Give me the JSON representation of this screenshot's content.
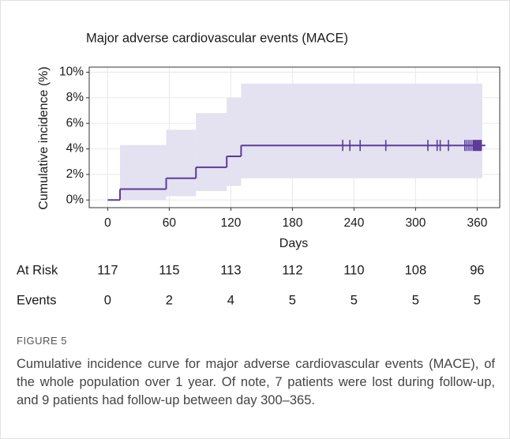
{
  "chart_data": {
    "type": "step",
    "title": "Major adverse cardiovascular events (MACE)",
    "x_label": "Days",
    "y_label": "Cumulative incidence (%)",
    "x": [
      0,
      12,
      57,
      86,
      116,
      130,
      368
    ],
    "values": [
      0,
      0.85,
      1.7,
      2.56,
      3.42,
      4.27,
      4.27
    ],
    "color": "#5b3c9a",
    "band": {
      "x": [
        12,
        57,
        86,
        116,
        130,
        365
      ],
      "lower": [
        0,
        0.3,
        0.7,
        1.1,
        1.7,
        1.7
      ],
      "upper": [
        4.3,
        5.5,
        6.8,
        8.0,
        9.1,
        9.1
      ],
      "color": "#e4e1f1"
    },
    "censored": {
      "x": [
        229,
        236,
        246,
        271,
        312,
        321,
        324,
        332,
        348,
        350,
        352,
        354,
        356,
        357,
        358,
        359,
        360,
        361,
        362,
        363,
        364
      ],
      "values": [
        4.27,
        4.27,
        4.27,
        4.27,
        4.27,
        4.27,
        4.27,
        4.27,
        4.27,
        4.27,
        4.27,
        4.27,
        4.27,
        4.27,
        4.27,
        4.27,
        4.27,
        4.27,
        4.27,
        4.27,
        4.27
      ]
    },
    "xlim": [
      -18,
      382
    ],
    "ylim": [
      -0.6,
      10.4
    ],
    "xticks": [
      0,
      60,
      120,
      180,
      240,
      300,
      360
    ],
    "yticks": [
      {
        "value": 0,
        "label": "0%"
      },
      {
        "value": 2,
        "label": "2%"
      },
      {
        "value": 4,
        "label": "4%"
      },
      {
        "value": 6,
        "label": "6%"
      },
      {
        "value": 8,
        "label": "8%"
      },
      {
        "value": 10,
        "label": "10%"
      }
    ],
    "grid": true,
    "risk_table": [
      {
        "label": "At Risk",
        "values": [
          117,
          115,
          113,
          112,
          110,
          108,
          96
        ]
      },
      {
        "label": "Events",
        "values": [
          0,
          2,
          4,
          5,
          5,
          5,
          5
        ]
      }
    ]
  },
  "figure": {
    "label": "FIGURE 5",
    "caption": "Cumulative incidence curve for major adverse cardiovascular events (MACE), of the whole population over 1 year. Of note, 7 patients were lost during follow-up, and 9 patients had follow-up between day 300–365."
  }
}
